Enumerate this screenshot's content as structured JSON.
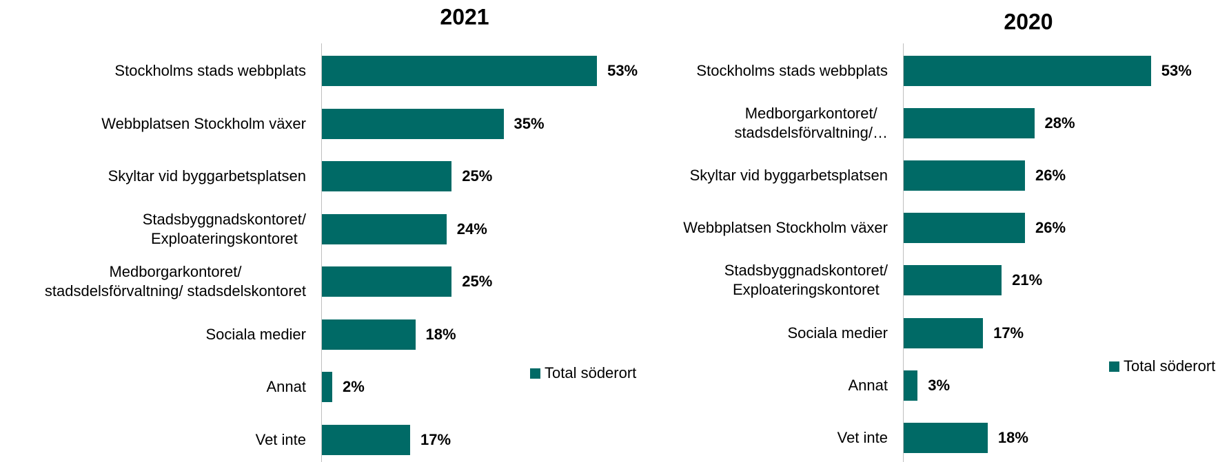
{
  "chart_data": [
    {
      "type": "bar",
      "orientation": "horizontal",
      "title": "2021",
      "categories": [
        "Stockholms stads webbplats",
        "Webbplatsen Stockholm växer",
        "Skyltar vid byggarbetsplatsen",
        "Stadsbyggnadskontoret/\nExploateringskontoret",
        "Medborgarkontoret/\nstadsdelsförvaltning/ stadsdelskontoret",
        "Sociala medier",
        "Annat",
        "Vet inte"
      ],
      "series": [
        {
          "name": "Total söderort",
          "color": "#006a66",
          "values": [
            53,
            35,
            25,
            24,
            25,
            18,
            2,
            17
          ],
          "value_labels": [
            "53%",
            "35%",
            "25%",
            "24%",
            "25%",
            "18%",
            "2%",
            "17%"
          ]
        }
      ]
    },
    {
      "type": "bar",
      "orientation": "horizontal",
      "title": "2020",
      "categories": [
        "Stockholms stads webbplats",
        "Medborgarkontoret/\nstadsdelsförvaltning/…",
        "Skyltar vid byggarbetsplatsen",
        "Webbplatsen Stockholm växer",
        "Stadsbyggnadskontoret/\nExploateringskontoret",
        "Sociala medier",
        "Annat",
        "Vet inte"
      ],
      "series": [
        {
          "name": "Total söderort",
          "color": "#006a66",
          "values": [
            53,
            28,
            26,
            26,
            21,
            17,
            3,
            18
          ],
          "value_labels": [
            "53%",
            "28%",
            "26%",
            "26%",
            "21%",
            "17%",
            "3%",
            "18%"
          ]
        }
      ]
    }
  ]
}
